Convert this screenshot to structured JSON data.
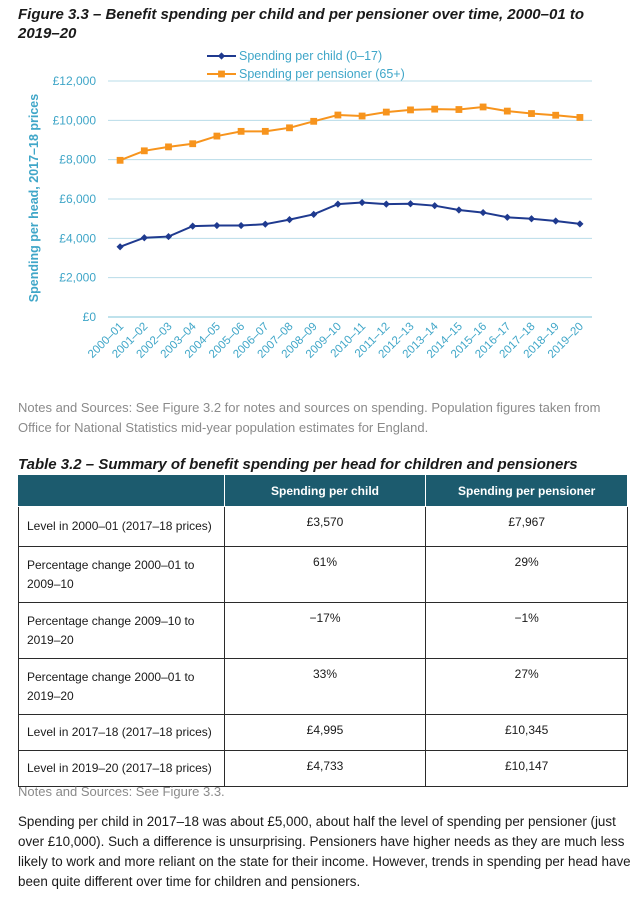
{
  "figure": {
    "title": "Figure 3.3 – Benefit spending per child and per pensioner over time, 2000–01 to 2019–20",
    "notes": "Notes and Sources: See Figure 3.2 for notes and sources on spending. Population figures taken from Office for National Statistics mid-year population estimates for England."
  },
  "chart_data": {
    "type": "line",
    "title": "",
    "xlabel": "",
    "ylabel": "Spending per head, 2017–18 prices",
    "ylim": [
      0,
      12000
    ],
    "y_ticks": [
      0,
      2000,
      4000,
      6000,
      8000,
      10000,
      12000
    ],
    "y_tick_labels": [
      "£0",
      "£2,000",
      "£4,000",
      "£6,000",
      "£8,000",
      "£10,000",
      "£12,000"
    ],
    "grid": true,
    "legend_position": "top-center",
    "categories": [
      "2000–01",
      "2001–02",
      "2002–03",
      "2003–04",
      "2004–05",
      "2005–06",
      "2006–07",
      "2007–08",
      "2008–09",
      "2009–10",
      "2010–11",
      "2011–12",
      "2012–13",
      "2013–14",
      "2014–15",
      "2015–16",
      "2016–17",
      "2017–18",
      "2018–19",
      "2019–20"
    ],
    "series": [
      {
        "name": "Spending per child (0–17)",
        "color": "#1f3a8f",
        "marker": "diamond",
        "values": [
          3570,
          4030,
          4090,
          4620,
          4650,
          4650,
          4720,
          4950,
          5220,
          5740,
          5820,
          5740,
          5760,
          5660,
          5440,
          5310,
          5070,
          4995,
          4880,
          4733
        ]
      },
      {
        "name": "Spending per pensioner (65+)",
        "color": "#f7941d",
        "marker": "square",
        "values": [
          7967,
          8450,
          8650,
          8810,
          9200,
          9440,
          9440,
          9620,
          9950,
          10270,
          10220,
          10420,
          10530,
          10570,
          10550,
          10680,
          10470,
          10345,
          10260,
          10147
        ]
      }
    ],
    "colors": {
      "axis_text": "#3fa6c8",
      "grid": "#b8dce8",
      "axis": "#7fc4d8"
    }
  },
  "table": {
    "title": "Table 3.2 – Summary of benefit spending per head for children and pensioners",
    "headers": [
      "",
      "Spending per child",
      "Spending per pensioner"
    ],
    "rows": [
      {
        "label": "Level in 2000–01 (2017–18 prices)",
        "child": "£3,570",
        "pensioner": "£7,967"
      },
      {
        "label": "Percentage change 2000–01 to 2009–10",
        "child": "61%",
        "pensioner": "29%"
      },
      {
        "label": "Percentage change 2009–10 to 2019–20",
        "child": "−17%",
        "pensioner": "−1%"
      },
      {
        "label": "Percentage change 2000–01 to 2019–20",
        "child": "33%",
        "pensioner": "27%"
      },
      {
        "label": "Level in 2017–18 (2017–18 prices)",
        "child": "£4,995",
        "pensioner": "£10,345"
      },
      {
        "label": "Level in 2019–20 (2017–18 prices)",
        "child": "£4,733",
        "pensioner": "£10,147"
      }
    ],
    "notes": "Notes and Sources: See Figure 3.3."
  },
  "body": {
    "paragraph": "Spending per child in 2017–18 was about £5,000, about half the level of spending per pensioner (just over £10,000). Such a difference is unsurprising. Pensioners have higher needs as they are much less likely to work and more reliant on the state for their income. However, trends in spending per head have been quite different over time for children and pensioners."
  }
}
